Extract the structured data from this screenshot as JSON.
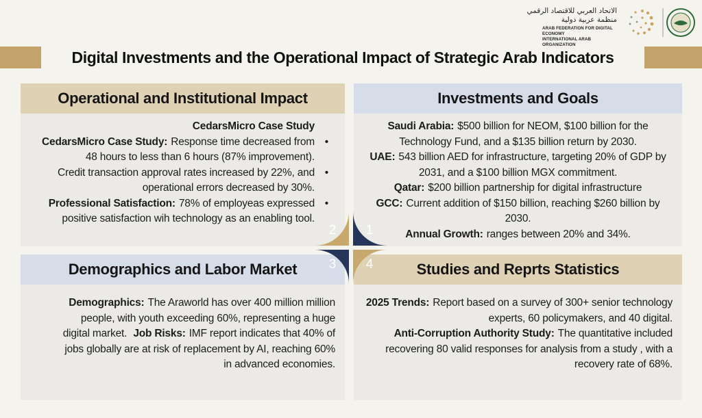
{
  "header": {
    "logo_arabic": [
      "الاتحاد العربي للاقتصاد الرقمي",
      "منظمة عربية دولية"
    ],
    "logo_english": [
      "ARAB FEDERATION FOR DIGITAL ECONOMY",
      "INTERNATIONAL ARAB ORGANIZATION"
    ],
    "title": "Digital Investments and the Operational Impact of Strategic Arab Indicators"
  },
  "panels": [
    {
      "number": 2,
      "heading": "Operational and Institutional Impact",
      "subheading": "CedarsMicro Case Study",
      "paragraphs": [
        [
          {
            "label": "CedarsMicro Case Study:",
            "text": "Response time decreased from 48 hours to less than 6 hours (87% improvement)."
          }
        ],
        [
          {
            "text": "Credit transaction approval rates increased by 22%, and operational errors decreased by 30%."
          }
        ],
        [
          {
            "label": "Professional Satisfaction:",
            "text": "78% of employeas expressed positive satisfaction wih technology as an enabling tool."
          }
        ]
      ]
    },
    {
      "number": 1,
      "heading": "Investments and Goals",
      "paragraphs": [
        [
          {
            "label": "Saudi Arabia:",
            "text": "$500 billion for NEOM, $100 billion for the Technology Fund, and a $135 billion return by 2030."
          }
        ],
        [
          {
            "label": "UAE:",
            "text": "543 billion AED for infrastructure, targeting 20% of GDP by 2031, and a $100 billion MGX commitment."
          }
        ],
        [
          {
            "label": "Qatar:",
            "text": "$200 billion partnership for digital infrastructure"
          }
        ],
        [
          {
            "label": "GCC:",
            "text": "Current addition of $150 billion, reaching $260 billion by 2030."
          }
        ],
        [
          {
            "label": "Annual Growth:",
            "text": "ranges between 20% and 34%."
          }
        ]
      ]
    },
    {
      "number": 3,
      "heading": "Demographics and Labor Market",
      "paragraphs": [
        [
          {
            "label": "Demographics:",
            "text": "The Araworld has over 400 million million people, with youth exceeding 60%, representing a huge digital market."
          },
          {
            "label": "Job Risks:",
            "text": "IMF report indicates that 40% of jobs globally are at risk of replacement by AI, reaching 60% in advanced economies."
          }
        ]
      ]
    },
    {
      "number": 4,
      "heading": "Studies and Reprts Statistics",
      "paragraphs": [
        [
          {
            "label": "2025 Trends:",
            "text": "Report based on a survey of 300+ senior technology experts, 60 policymakers, and 40 digital."
          }
        ],
        [
          {
            "label": "Anti-Corruption Authority Study:",
            "text": "The quantitative included recovering 80 valid responses for analysis from a study , with a recovery rate of 68%."
          }
        ]
      ]
    }
  ]
}
